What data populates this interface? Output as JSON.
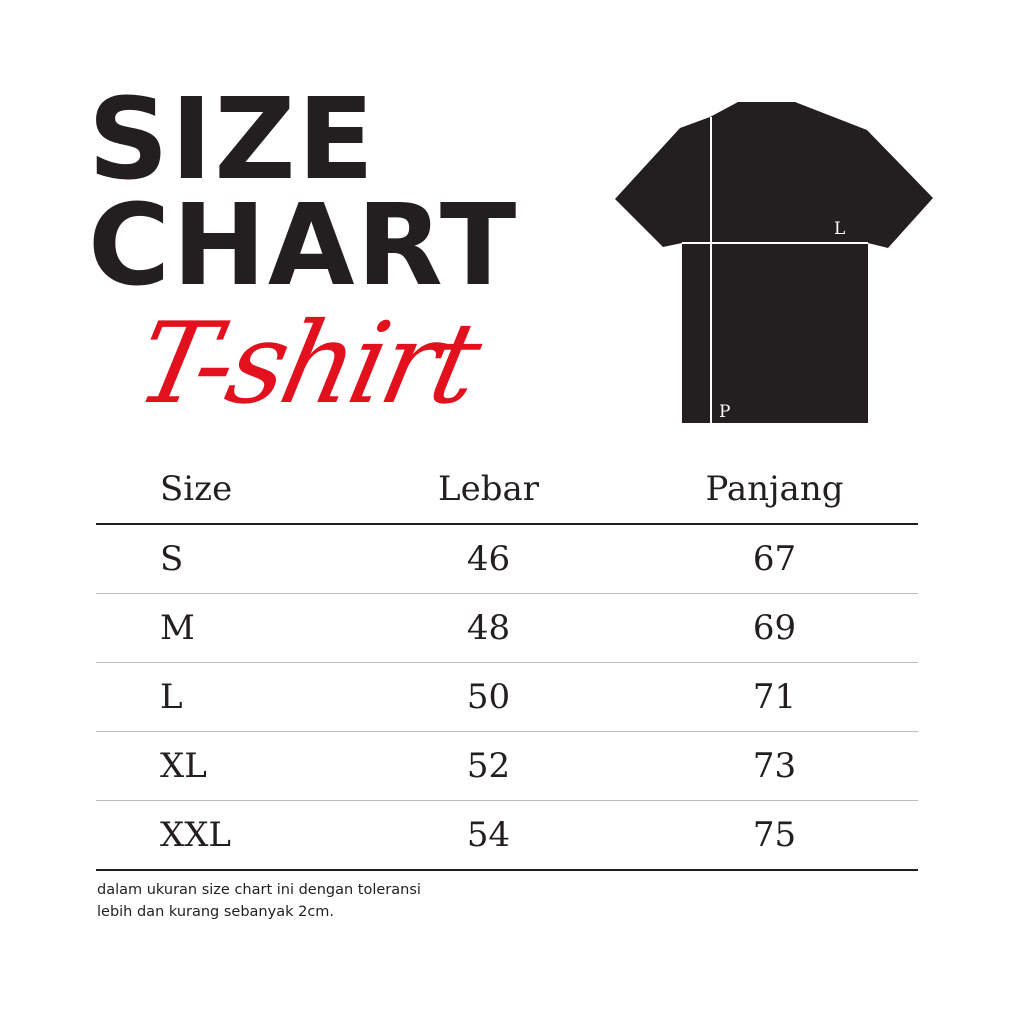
{
  "heading": {
    "line1": "SIZE",
    "line2": "CHART",
    "script": "T-shirt",
    "script_color": "#e3101e"
  },
  "diagram": {
    "width_label": "L",
    "length_label": "P"
  },
  "table": {
    "headers": [
      "Size",
      "Lebar",
      "Panjang"
    ],
    "rows": [
      [
        "S",
        "46",
        "67"
      ],
      [
        "M",
        "48",
        "69"
      ],
      [
        "L",
        "50",
        "71"
      ],
      [
        "XL",
        "52",
        "73"
      ],
      [
        "XXL",
        "54",
        "75"
      ]
    ]
  },
  "footnote": {
    "line1": "dalam ukuran size chart ini dengan toleransi",
    "line2": "lebih dan kurang sebanyak 2cm."
  }
}
